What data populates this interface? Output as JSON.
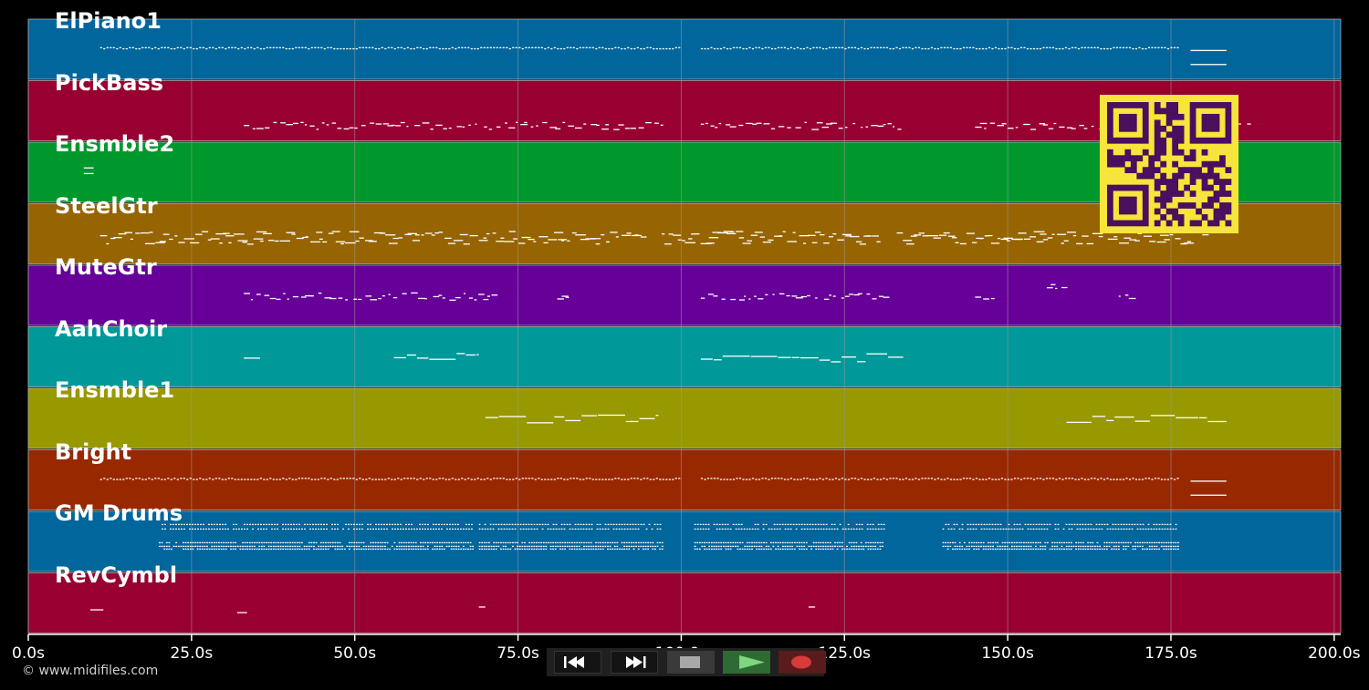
{
  "colors": {
    "background": "#000000",
    "grid": "#9a9a9a",
    "note": "#ffffff",
    "qr_fg": "#4a0f5e",
    "qr_bg": "#f7e53b"
  },
  "tracks": [
    {
      "label": "ElPiano1",
      "color": "#00669c"
    },
    {
      "label": "PickBass",
      "color": "#980032"
    },
    {
      "label": "Ensmble2",
      "color": "#00982c"
    },
    {
      "label": "SteelGtr",
      "color": "#966400"
    },
    {
      "label": "MuteGtr",
      "color": "#660098"
    },
    {
      "label": "AahChoir",
      "color": "#009898"
    },
    {
      "label": "Ensmble1",
      "color": "#989800"
    },
    {
      "label": "Bright",
      "color": "#982800"
    },
    {
      "label": "GM Drums",
      "color": "#00669c"
    },
    {
      "label": "RevCymbl",
      "color": "#980032"
    }
  ],
  "timeline": {
    "start_s": 0,
    "end_s": 201,
    "ticks": [
      {
        "value": 0,
        "label": "0.0s"
      },
      {
        "value": 25,
        "label": "25.0s"
      },
      {
        "value": 50,
        "label": "50.0s"
      },
      {
        "value": 75,
        "label": "75.0s"
      },
      {
        "value": 100,
        "label": "100.0s"
      },
      {
        "value": 125,
        "label": "125.0s"
      },
      {
        "value": 150,
        "label": "150.0s"
      },
      {
        "value": 175,
        "label": "175.0s"
      },
      {
        "value": 200,
        "label": "200.0s"
      }
    ]
  },
  "note_segments": [
    {
      "track": 0,
      "start": 11,
      "end": 100,
      "pitch": 0.55,
      "style": "dotted"
    },
    {
      "track": 0,
      "start": 103,
      "end": 176,
      "pitch": 0.55,
      "style": "dotted"
    },
    {
      "track": 0,
      "start": 178,
      "end": 183.5,
      "pitch": 0.5,
      "style": "solid"
    },
    {
      "track": 0,
      "start": 178,
      "end": 183.5,
      "pitch": 0.25,
      "style": "solid"
    },
    {
      "track": 1,
      "start": 33,
      "end": 97,
      "pitch": 0.25,
      "style": "scatter"
    },
    {
      "track": 1,
      "start": 103,
      "end": 134,
      "pitch": 0.25,
      "style": "scatter"
    },
    {
      "track": 1,
      "start": 145,
      "end": 187,
      "pitch": 0.25,
      "style": "scatter"
    },
    {
      "track": 2,
      "start": 8.5,
      "end": 10,
      "pitch": 0.6,
      "style": "solid"
    },
    {
      "track": 2,
      "start": 8.5,
      "end": 10,
      "pitch": 0.5,
      "style": "solid"
    },
    {
      "track": 3,
      "start": 11,
      "end": 68,
      "pitch": 0.45,
      "style": "dense"
    },
    {
      "track": 3,
      "start": 69,
      "end": 94,
      "pitch": 0.45,
      "style": "dense"
    },
    {
      "track": 3,
      "start": 97,
      "end": 130,
      "pitch": 0.45,
      "style": "dense"
    },
    {
      "track": 3,
      "start": 133,
      "end": 180,
      "pitch": 0.45,
      "style": "dense"
    },
    {
      "track": 4,
      "start": 33,
      "end": 71,
      "pitch": 0.5,
      "style": "scatter"
    },
    {
      "track": 4,
      "start": 81,
      "end": 83,
      "pitch": 0.5,
      "style": "scatter"
    },
    {
      "track": 4,
      "start": 103,
      "end": 131,
      "pitch": 0.5,
      "style": "scatter"
    },
    {
      "track": 4,
      "start": 145,
      "end": 147.5,
      "pitch": 0.5,
      "style": "scatter"
    },
    {
      "track": 4,
      "start": 156,
      "end": 158.5,
      "pitch": 0.7,
      "style": "scatter"
    },
    {
      "track": 4,
      "start": 167,
      "end": 169,
      "pitch": 0.5,
      "style": "scatter"
    },
    {
      "track": 5,
      "start": 33,
      "end": 35.5,
      "pitch": 0.5,
      "style": "solid"
    },
    {
      "track": 5,
      "start": 56,
      "end": 69,
      "pitch": 0.5,
      "style": "melody"
    },
    {
      "track": 5,
      "start": 103,
      "end": 134,
      "pitch": 0.5,
      "style": "melody"
    },
    {
      "track": 6,
      "start": 70,
      "end": 96.5,
      "pitch": 0.5,
      "style": "melody"
    },
    {
      "track": 6,
      "start": 159,
      "end": 183.5,
      "pitch": 0.5,
      "style": "melody"
    },
    {
      "track": 7,
      "start": 11,
      "end": 100,
      "pitch": 0.55,
      "style": "dotted"
    },
    {
      "track": 7,
      "start": 103,
      "end": 176,
      "pitch": 0.55,
      "style": "dotted"
    },
    {
      "track": 7,
      "start": 178,
      "end": 183.5,
      "pitch": 0.5,
      "style": "solid"
    },
    {
      "track": 7,
      "start": 178,
      "end": 183.5,
      "pitch": 0.25,
      "style": "solid"
    },
    {
      "track": 8,
      "start": 20,
      "end": 68,
      "pitch": 0.5,
      "style": "drums"
    },
    {
      "track": 8,
      "start": 69,
      "end": 97,
      "pitch": 0.5,
      "style": "drums"
    },
    {
      "track": 8,
      "start": 102,
      "end": 131,
      "pitch": 0.5,
      "style": "drums"
    },
    {
      "track": 8,
      "start": 140,
      "end": 176,
      "pitch": 0.5,
      "style": "drums"
    },
    {
      "track": 9,
      "start": 9.5,
      "end": 11.5,
      "pitch": 0.4,
      "style": "solid"
    },
    {
      "track": 9,
      "start": 32,
      "end": 33.5,
      "pitch": 0.35,
      "style": "solid"
    },
    {
      "track": 9,
      "start": 69,
      "end": 70,
      "pitch": 0.45,
      "style": "solid"
    },
    {
      "track": 9,
      "start": 119.5,
      "end": 120.5,
      "pitch": 0.45,
      "style": "solid"
    }
  ],
  "footer": {
    "copyright": "© www.midifiles.com"
  },
  "transport": {
    "rewind_icon": "rewind-icon",
    "ffwd_icon": "fast-forward-icon",
    "stop_icon": "stop-icon",
    "play_icon": "play-icon",
    "record_icon": "record-icon"
  },
  "qr": {
    "icon": "qr-code-icon"
  }
}
